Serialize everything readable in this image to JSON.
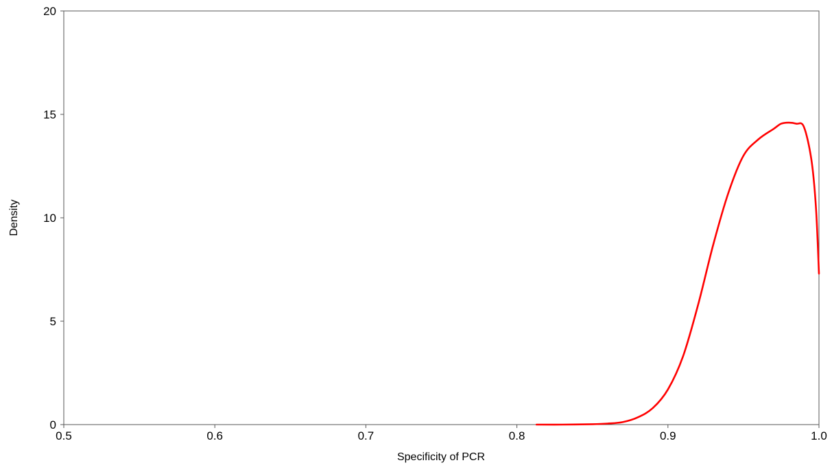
{
  "chart_data": {
    "type": "line",
    "title": "",
    "xlabel": "Specificity of PCR",
    "ylabel": "Density",
    "xlim": [
      0.5,
      1.0
    ],
    "ylim": [
      0,
      20
    ],
    "x_ticks": [
      0.5,
      0.6,
      0.7,
      0.8,
      0.9,
      1.0
    ],
    "x_tick_labels": [
      "0.5",
      "0.6",
      "0.7",
      "0.8",
      "0.9",
      "1.0"
    ],
    "y_ticks": [
      0,
      5,
      10,
      15,
      20
    ],
    "y_tick_labels": [
      "0",
      "5",
      "10",
      "15",
      "20"
    ],
    "grid": false,
    "legend": "none",
    "series": [
      {
        "color": "#ff0000",
        "x": [
          0.813,
          0.83,
          0.85,
          0.86,
          0.87,
          0.88,
          0.89,
          0.9,
          0.91,
          0.92,
          0.93,
          0.94,
          0.95,
          0.96,
          0.97,
          0.975,
          0.98,
          0.985,
          0.99,
          0.995,
          0.998,
          1.0
        ],
        "y": [
          0.0,
          0.0,
          0.02,
          0.05,
          0.12,
          0.35,
          0.8,
          1.7,
          3.3,
          5.8,
          8.7,
          11.2,
          13.0,
          13.8,
          14.3,
          14.55,
          14.6,
          14.55,
          14.4,
          12.8,
          10.5,
          7.3
        ]
      }
    ]
  }
}
